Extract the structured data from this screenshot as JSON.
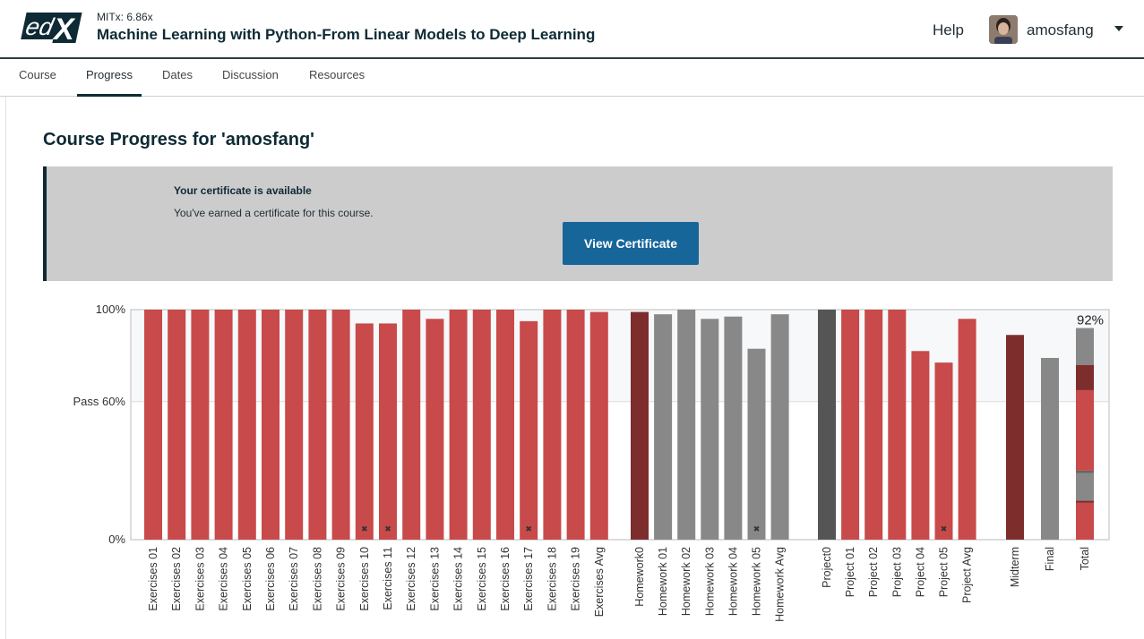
{
  "header": {
    "course_code": "MITx: 6.86x",
    "course_title": "Machine Learning with Python-From Linear Models to Deep Learning",
    "help_label": "Help",
    "username": "amosfang",
    "logo_icon": "edx-logo-icon",
    "avatar_icon": "user-avatar-icon",
    "menu_icon": "chevron-down-icon"
  },
  "nav": {
    "tabs": [
      {
        "label": "Course",
        "active": false
      },
      {
        "label": "Progress",
        "active": true
      },
      {
        "label": "Dates",
        "active": false
      },
      {
        "label": "Discussion",
        "active": false
      },
      {
        "label": "Resources",
        "active": false
      }
    ]
  },
  "page": {
    "title": "Course Progress for 'amosfang'"
  },
  "certificate": {
    "heading": "Your certificate is available",
    "text": "You've earned a certificate for this course.",
    "button_label": "View Certificate"
  },
  "chart_data": {
    "type": "bar",
    "ylim": [
      0,
      100
    ],
    "yticks": [
      {
        "value": 100,
        "label": "100%"
      },
      {
        "value": 60,
        "label": "Pass 60%"
      },
      {
        "value": 0,
        "label": "0%"
      }
    ],
    "pass_threshold": 60,
    "colors": {
      "exercises": "#c84a4a",
      "homework": "#888888",
      "project0": "#555555",
      "homework0": "#7e2d2d",
      "midterm": "#7e2d2d",
      "final": "#888888"
    },
    "categories": [
      "Exercises 01",
      "Exercises 02",
      "Exercises 03",
      "Exercises 04",
      "Exercises 05",
      "Exercises 06",
      "Exercises 07",
      "Exercises 08",
      "Exercises 09",
      "Exercises 10",
      "Exercises 11",
      "Exercises 12",
      "Exercises 13",
      "Exercises 14",
      "Exercises 15",
      "Exercises 16",
      "Exercises 17",
      "Exercises 18",
      "Exercises 19",
      "Exercises Avg",
      "Homework0",
      "Homework 01",
      "Homework 02",
      "Homework 03",
      "Homework 04",
      "Homework 05",
      "Homework Avg",
      "Project0",
      "Project 01",
      "Project 02",
      "Project 03",
      "Project 04",
      "Project 05",
      "Project Avg",
      "Midterm",
      "Final",
      "Total"
    ],
    "values": [
      100,
      100,
      100,
      100,
      100,
      100,
      100,
      100,
      100,
      94,
      94,
      100,
      96,
      100,
      100,
      100,
      95,
      100,
      100,
      99,
      99,
      98,
      100,
      96,
      97,
      83,
      98,
      100,
      100,
      100,
      100,
      82,
      77,
      96,
      89,
      79,
      92
    ],
    "series_color": [
      "exercises",
      "exercises",
      "exercises",
      "exercises",
      "exercises",
      "exercises",
      "exercises",
      "exercises",
      "exercises",
      "exercises",
      "exercises",
      "exercises",
      "exercises",
      "exercises",
      "exercises",
      "exercises",
      "exercises",
      "exercises",
      "exercises",
      "exercises",
      "homework0",
      "homework",
      "homework",
      "homework",
      "homework",
      "homework",
      "homework",
      "project0",
      "exercises",
      "exercises",
      "exercises",
      "exercises",
      "exercises",
      "exercises",
      "midterm",
      "final",
      "total"
    ],
    "dropped": [
      "Exercises 10",
      "Exercises 11",
      "Exercises 17",
      "Homework 05",
      "Project 05"
    ],
    "total_label": "92%",
    "total_segments": [
      {
        "component": "Exercises",
        "value": 16,
        "color": "#c84a4a"
      },
      {
        "component": "Homework",
        "value": 1,
        "color": "#7e2d2d"
      },
      {
        "component": "Homework",
        "value": 12,
        "color": "#888888"
      },
      {
        "component": "Homework",
        "value": 1,
        "color": "#666666"
      },
      {
        "component": "Project",
        "value": 35,
        "color": "#c84a4a"
      },
      {
        "component": "Midterm",
        "value": 11,
        "color": "#7e2d2d"
      },
      {
        "component": "Final",
        "value": 16,
        "color": "#888888"
      }
    ]
  }
}
